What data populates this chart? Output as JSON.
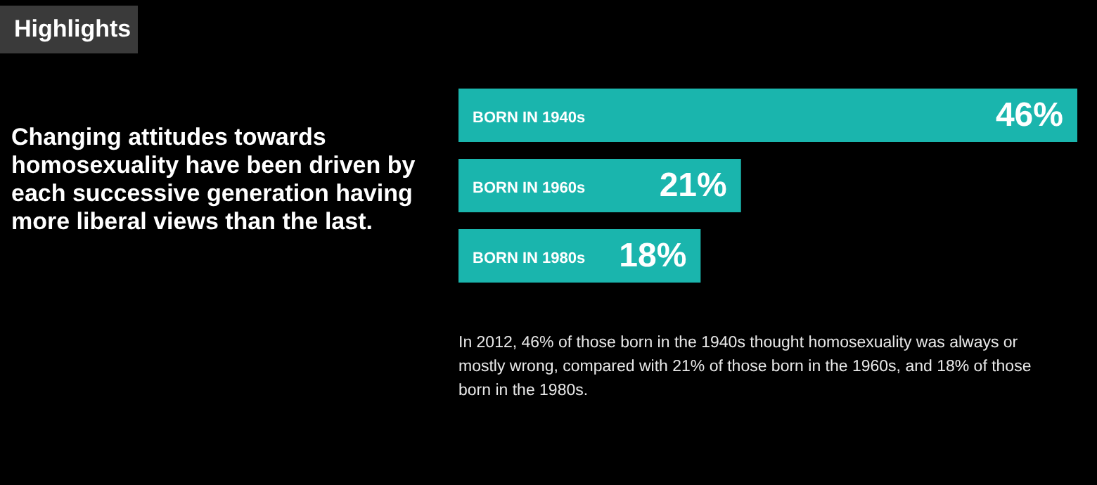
{
  "chart_data": {
    "type": "bar",
    "orientation": "horizontal",
    "title": "Highlights",
    "subtitle": "Changing attitudes towards homosexuality have been driven by each successive generation having more liberal views than the last.",
    "categories": [
      "BORN IN 1940s",
      "BORN IN 1960s",
      "BORN IN 1980s"
    ],
    "values": [
      46,
      21,
      18
    ],
    "color": "#1ab5ad",
    "value_labels": [
      "46%",
      "21%",
      "18%"
    ],
    "xlim": [
      0,
      46
    ],
    "tick_labels": false,
    "annotations": [
      "In 2012, 46% of those born in the 1940s thought homosexuality was always or mostly wrong, compared with 21% of those born in the 1960s, and 18% of those born in the 1980s."
    ]
  }
}
